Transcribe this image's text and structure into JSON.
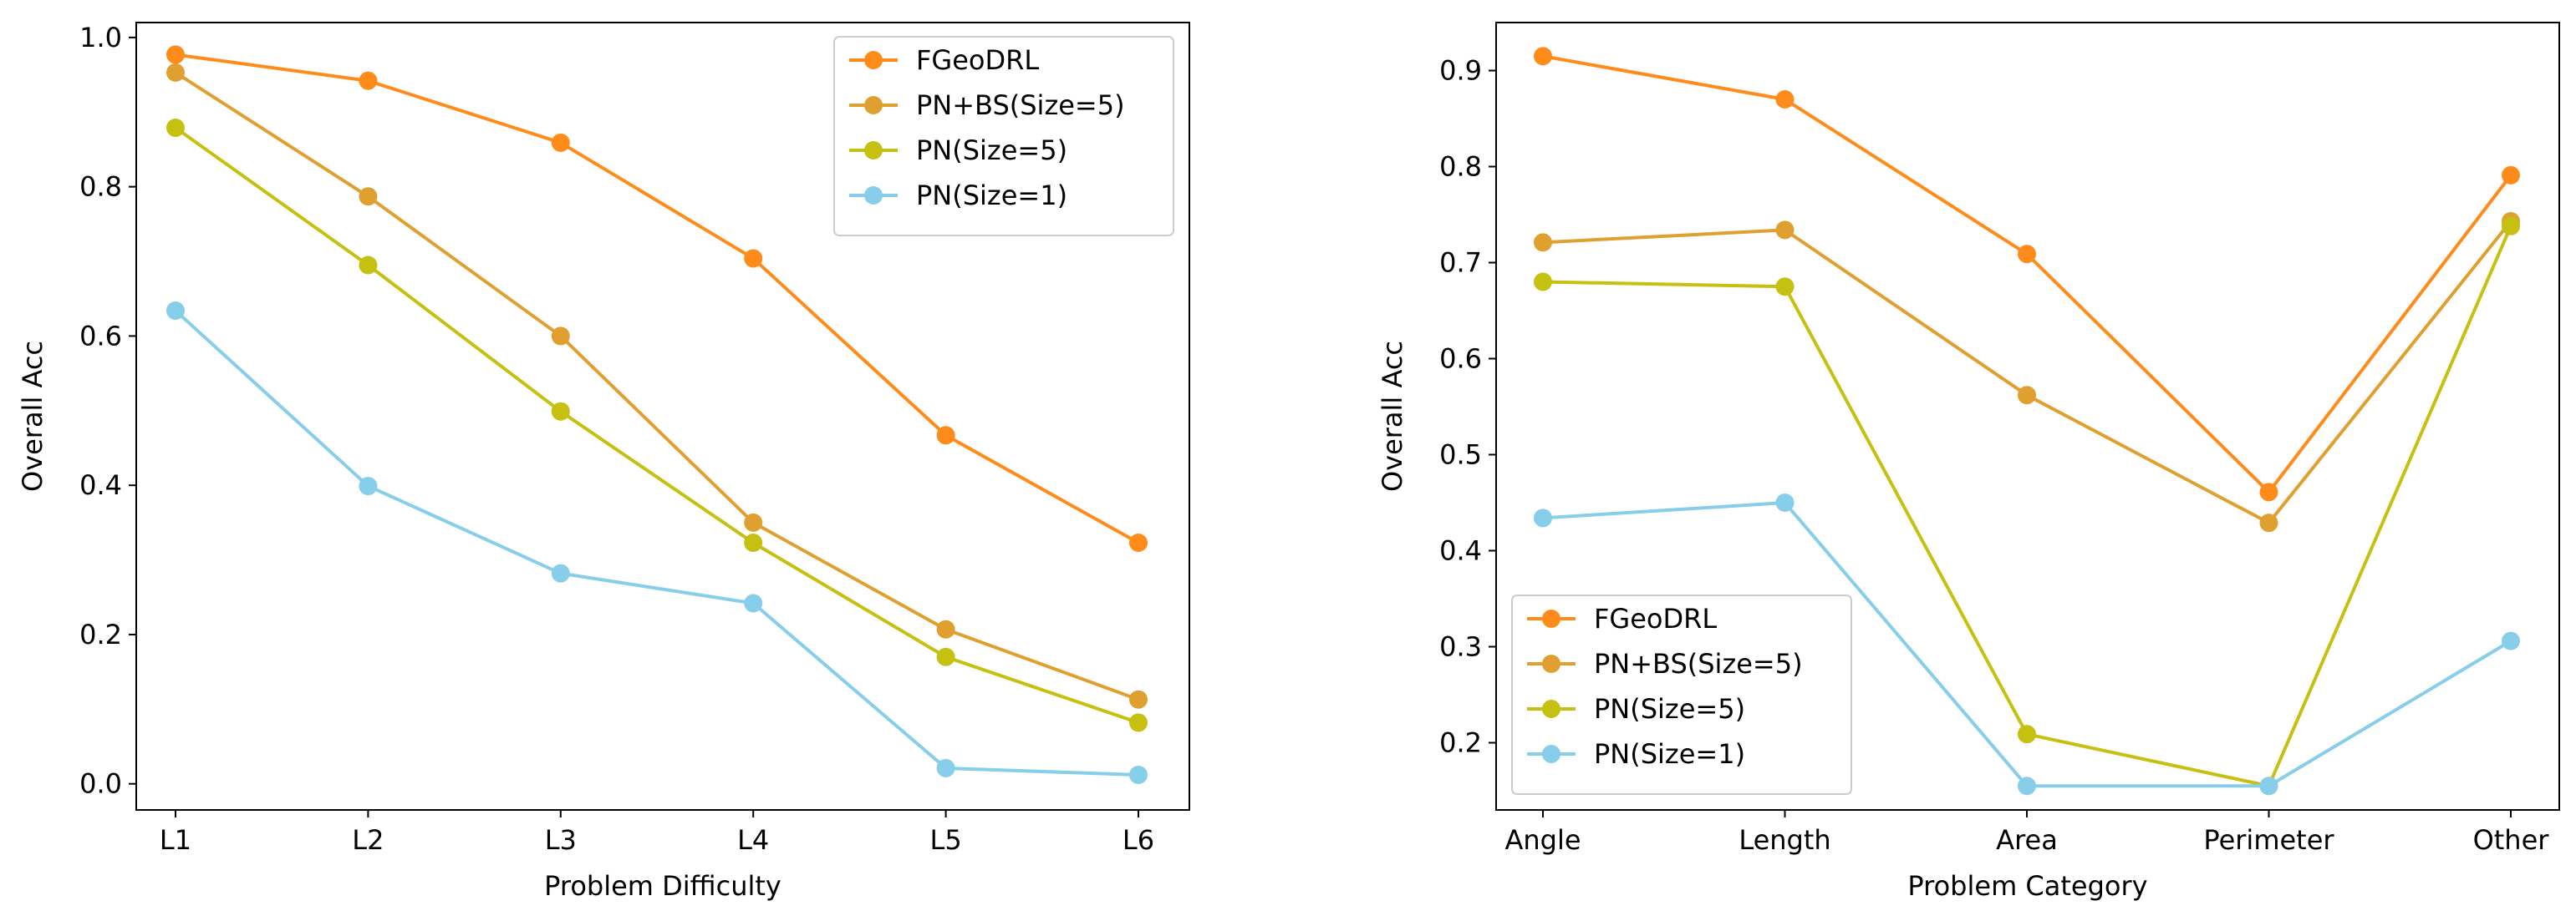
{
  "chart_data": [
    {
      "type": "line",
      "title": "",
      "xlabel": "Problem Difficulty",
      "ylabel": "Overall Acc",
      "categories": [
        "L1",
        "L2",
        "L3",
        "L4",
        "L5",
        "L6"
      ],
      "ylim": [
        -0.035,
        1.02
      ],
      "yticks": [
        0.0,
        0.2,
        0.4,
        0.6,
        0.8,
        1.0
      ],
      "ytick_labels": [
        "0.0",
        "0.2",
        "0.4",
        "0.6",
        "0.8",
        "1.0"
      ],
      "legend_position": "top-right",
      "grid": false,
      "series": [
        {
          "name": "FGeoDRL",
          "color": "#ff8c1a",
          "values": [
            0.977,
            0.942,
            0.859,
            0.704,
            0.467,
            0.323
          ]
        },
        {
          "name": "PN+BS(Size=5)",
          "color": "#e0a030",
          "values": [
            0.953,
            0.787,
            0.6,
            0.35,
            0.207,
            0.113
          ]
        },
        {
          "name": "PN(Size=5)",
          "color": "#c6c010",
          "values": [
            0.879,
            0.695,
            0.499,
            0.323,
            0.17,
            0.082
          ]
        },
        {
          "name": "PN(Size=1)",
          "color": "#87ceeb",
          "values": [
            0.634,
            0.399,
            0.282,
            0.242,
            0.021,
            0.012
          ]
        }
      ]
    },
    {
      "type": "line",
      "title": "",
      "xlabel": "Problem Category",
      "ylabel": "Overall Acc",
      "categories": [
        "Angle",
        "Length",
        "Area",
        "Perimeter",
        "Other"
      ],
      "ylim": [
        0.13,
        0.95
      ],
      "yticks": [
        0.2,
        0.3,
        0.4,
        0.5,
        0.6,
        0.7,
        0.8,
        0.9
      ],
      "ytick_labels": [
        "0.2",
        "0.3",
        "0.4",
        "0.5",
        "0.6",
        "0.7",
        "0.8",
        "0.9"
      ],
      "legend_position": "bottom-left",
      "grid": false,
      "series": [
        {
          "name": "FGeoDRL",
          "color": "#ff8c1a",
          "values": [
            0.915,
            0.87,
            0.709,
            0.461,
            0.791
          ]
        },
        {
          "name": "PN+BS(Size=5)",
          "color": "#e0a030",
          "values": [
            0.721,
            0.734,
            0.562,
            0.429,
            0.743
          ]
        },
        {
          "name": "PN(Size=5)",
          "color": "#c6c010",
          "values": [
            0.68,
            0.675,
            0.209,
            0.155,
            0.738
          ]
        },
        {
          "name": "PN(Size=1)",
          "color": "#87ceeb",
          "values": [
            0.434,
            0.45,
            0.155,
            0.155,
            0.306
          ]
        }
      ]
    }
  ]
}
